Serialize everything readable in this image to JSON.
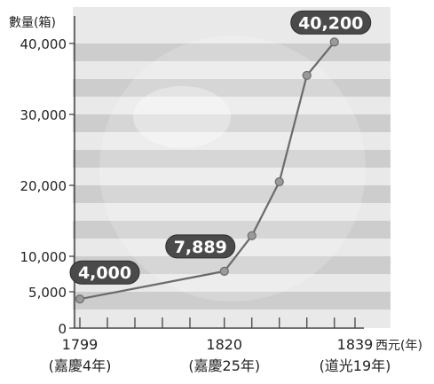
{
  "chart_data": {
    "type": "line",
    "ylabel": "數量(箱)",
    "xlabel": "西元(年)",
    "y_ticks": [
      0,
      5000,
      10000,
      20000,
      30000,
      40000
    ],
    "y_tick_labels": [
      "0",
      "5,000",
      "10,000",
      "20,000",
      "30,000",
      "40,000"
    ],
    "ylim": [
      0,
      40000
    ],
    "xlim": [
      1799,
      1839
    ],
    "x_ticks_minor": [
      1799,
      1803,
      1807,
      1811,
      1815,
      1820,
      1824,
      1828,
      1832,
      1836,
      1839
    ],
    "x_tick_labels": [
      {
        "year": 1799,
        "label": "1799",
        "era": "(嘉慶4年)"
      },
      {
        "year": 1820,
        "label": "1820",
        "era": "(嘉慶25年)"
      },
      {
        "year": 1839,
        "label": "1839",
        "era": "(道光19年)"
      }
    ],
    "series": [
      {
        "x": [
          1799,
          1820,
          1824,
          1828,
          1832,
          1836
        ],
        "values": [
          4000,
          7889,
          12900,
          20500,
          35500,
          40200
        ]
      }
    ],
    "data_labels": [
      {
        "x": 1799,
        "y": 4000,
        "text": "4,000"
      },
      {
        "x": 1820,
        "y": 7889,
        "text": "7,889"
      },
      {
        "x": 1836,
        "y": 40200,
        "text": "40,200"
      }
    ],
    "grid": "horizontal bands",
    "colors": {
      "line": "#6a6a6a",
      "marker": "#9a9a9a",
      "band_dark": "#c8c8c8",
      "band_light": "#e9e9e9",
      "label_bg": "#4a4a4a",
      "label_text": "#ffffff"
    }
  }
}
